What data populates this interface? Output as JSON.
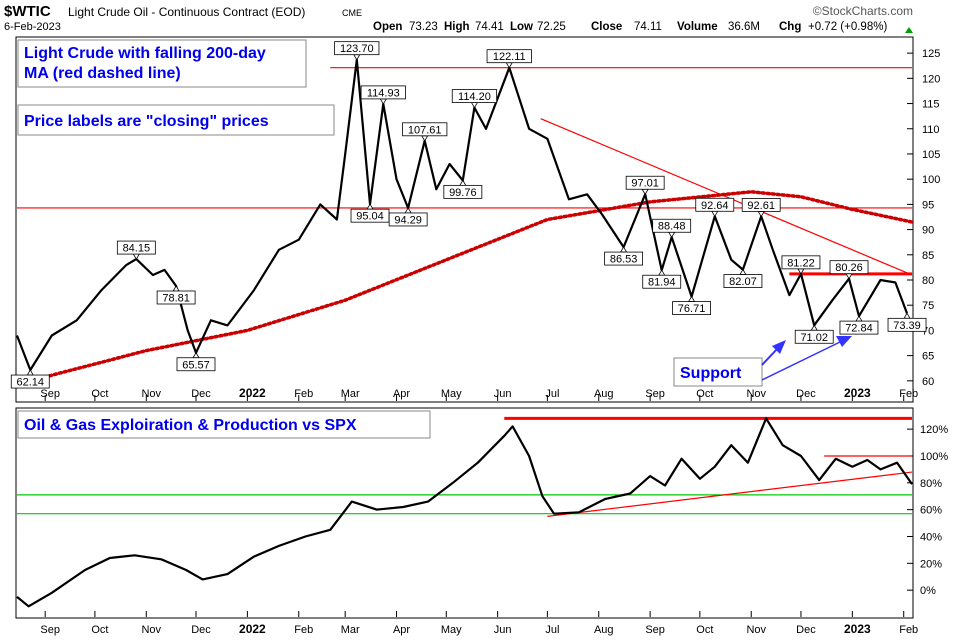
{
  "header": {
    "symbol": "$WTIC",
    "name": "Light Crude Oil - Continuous Contract (EOD)",
    "exchange": "CME",
    "date": "6-Feb-2023",
    "source": "©StockCharts.com",
    "quote_labels": {
      "open": "Open",
      "high": "High",
      "low": "Low",
      "close": "Close",
      "volume": "Volume",
      "chg": "Chg"
    },
    "quote": {
      "open": "73.23",
      "high": "74.41",
      "low": "72.25",
      "close": "74.11",
      "volume": "36.6M",
      "chg": "+0.72 (+0.98%)"
    }
  },
  "annotations": {
    "box1": [
      "Light Crude with falling 200-day",
      "MA (red dashed line)"
    ],
    "box2": "Price labels are \"closing\" prices",
    "support": "Support",
    "lower_title": "Oil & Gas Exploiration & Production vs SPX"
  },
  "x_ticks": [
    "Sep",
    "Oct",
    "Nov",
    "Dec",
    "2022",
    "Feb",
    "Mar",
    "Apr",
    "May",
    "Jun",
    "Jul",
    "Aug",
    "Sep",
    "Oct",
    "Nov",
    "Dec",
    "2023",
    "Feb"
  ],
  "x_tick_dates": [
    "2021-09-01",
    "2021-10-01",
    "2021-11-01",
    "2021-12-01",
    "2022-01-01",
    "2022-02-01",
    "2022-03-01",
    "2022-04-01",
    "2022-05-01",
    "2022-06-01",
    "2022-07-01",
    "2022-08-01",
    "2022-09-01",
    "2022-10-01",
    "2022-11-01",
    "2022-12-01",
    "2023-01-01",
    "2023-02-01"
  ],
  "colors": {
    "price": "#000000",
    "ma": "#cc0000",
    "trend": "#ff0000",
    "support_line": "#00cc00",
    "annotation_text": "#0000ee",
    "support_arrow": "#3333ff"
  },
  "chart_data": [
    {
      "type": "line",
      "title": "Light Crude Oil - Continuous Contract (EOD)",
      "ylim": [
        56,
        128
      ],
      "y_ticks": [
        60,
        65,
        70,
        75,
        80,
        85,
        90,
        95,
        100,
        105,
        110,
        115,
        120,
        125
      ],
      "grid": false,
      "series": [
        {
          "name": "$WTIC",
          "values": [
            [
              "2021-08-15",
              69
            ],
            [
              "2021-08-23",
              62.14
            ],
            [
              "2021-09-05",
              69
            ],
            [
              "2021-09-20",
              72
            ],
            [
              "2021-10-05",
              78
            ],
            [
              "2021-10-20",
              83
            ],
            [
              "2021-10-26",
              84.15
            ],
            [
              "2021-11-05",
              81
            ],
            [
              "2021-11-12",
              82
            ],
            [
              "2021-11-19",
              78.81
            ],
            [
              "2021-11-26",
              70
            ],
            [
              "2021-12-01",
              65.57
            ],
            [
              "2021-12-10",
              72
            ],
            [
              "2021-12-20",
              71
            ],
            [
              "2022-01-05",
              78
            ],
            [
              "2022-01-20",
              86
            ],
            [
              "2022-02-01",
              88
            ],
            [
              "2022-02-14",
              95
            ],
            [
              "2022-02-24",
              92
            ],
            [
              "2022-03-01",
              105
            ],
            [
              "2022-03-08",
              123.7
            ],
            [
              "2022-03-16",
              95.04
            ],
            [
              "2022-03-24",
              114.93
            ],
            [
              "2022-04-01",
              100
            ],
            [
              "2022-04-08",
              94.29
            ],
            [
              "2022-04-18",
              107.61
            ],
            [
              "2022-04-25",
              98
            ],
            [
              "2022-05-03",
              103
            ],
            [
              "2022-05-11",
              99.76
            ],
            [
              "2022-05-18",
              114.2
            ],
            [
              "2022-05-25",
              110
            ],
            [
              "2022-06-08",
              122.11
            ],
            [
              "2022-06-20",
              110
            ],
            [
              "2022-07-01",
              108
            ],
            [
              "2022-07-14",
              96
            ],
            [
              "2022-07-25",
              97
            ],
            [
              "2022-08-03",
              93
            ],
            [
              "2022-08-16",
              86.53
            ],
            [
              "2022-08-29",
              97.01
            ],
            [
              "2022-09-08",
              81.94
            ],
            [
              "2022-09-14",
              88.48
            ],
            [
              "2022-09-26",
              76.71
            ],
            [
              "2022-10-10",
              92.64
            ],
            [
              "2022-10-20",
              84
            ],
            [
              "2022-10-27",
              82.07
            ],
            [
              "2022-11-07",
              92.61
            ],
            [
              "2022-11-14",
              86
            ],
            [
              "2022-11-24",
              77
            ],
            [
              "2022-12-01",
              81.22
            ],
            [
              "2022-12-09",
              71.02
            ],
            [
              "2022-12-20",
              76
            ],
            [
              "2022-12-30",
              80.26
            ],
            [
              "2023-01-05",
              72.84
            ],
            [
              "2023-01-18",
              80
            ],
            [
              "2023-01-27",
              79.5
            ],
            [
              "2023-02-03",
              73.39
            ]
          ]
        },
        {
          "name": "200-day MA",
          "style": "dashed",
          "values": [
            [
              "2021-08-23",
              60
            ],
            [
              "2021-11-01",
              66
            ],
            [
              "2022-01-01",
              70
            ],
            [
              "2022-03-01",
              76
            ],
            [
              "2022-05-01",
              84
            ],
            [
              "2022-07-01",
              92
            ],
            [
              "2022-09-01",
              95.5
            ],
            [
              "2022-11-01",
              97.5
            ],
            [
              "2022-12-01",
              96.5
            ],
            [
              "2023-01-01",
              94
            ],
            [
              "2023-02-06",
              91.5
            ]
          ]
        }
      ],
      "labels": [
        {
          "date": "2021-08-23",
          "value": 62.14,
          "text": "62.14",
          "pos": "below"
        },
        {
          "date": "2021-10-26",
          "value": 84.15,
          "text": "84.15",
          "pos": "above"
        },
        {
          "date": "2021-11-19",
          "value": 78.81,
          "text": "78.81",
          "pos": "below"
        },
        {
          "date": "2021-12-01",
          "value": 65.57,
          "text": "65.57",
          "pos": "below"
        },
        {
          "date": "2022-03-08",
          "value": 123.7,
          "text": "123.70",
          "pos": "above"
        },
        {
          "date": "2022-03-16",
          "value": 95.04,
          "text": "95.04",
          "pos": "below"
        },
        {
          "date": "2022-03-24",
          "value": 114.93,
          "text": "114.93",
          "pos": "above"
        },
        {
          "date": "2022-04-08",
          "value": 94.29,
          "text": "94.29",
          "pos": "below"
        },
        {
          "date": "2022-04-18",
          "value": 107.61,
          "text": "107.61",
          "pos": "above"
        },
        {
          "date": "2022-05-11",
          "value": 99.76,
          "text": "99.76",
          "pos": "below"
        },
        {
          "date": "2022-05-18",
          "value": 114.2,
          "text": "114.20",
          "pos": "above"
        },
        {
          "date": "2022-06-08",
          "value": 122.11,
          "text": "122.11",
          "pos": "above"
        },
        {
          "date": "2022-08-16",
          "value": 86.53,
          "text": "86.53",
          "pos": "below"
        },
        {
          "date": "2022-08-29",
          "value": 97.01,
          "text": "97.01",
          "pos": "above"
        },
        {
          "date": "2022-09-08",
          "value": 81.94,
          "text": "81.94",
          "pos": "below"
        },
        {
          "date": "2022-09-14",
          "value": 88.48,
          "text": "88.48",
          "pos": "above"
        },
        {
          "date": "2022-09-26",
          "value": 76.71,
          "text": "76.71",
          "pos": "below"
        },
        {
          "date": "2022-10-10",
          "value": 92.64,
          "text": "92.64",
          "pos": "above"
        },
        {
          "date": "2022-10-27",
          "value": 82.07,
          "text": "82.07",
          "pos": "below"
        },
        {
          "date": "2022-11-07",
          "value": 92.61,
          "text": "92.61",
          "pos": "above"
        },
        {
          "date": "2022-12-01",
          "value": 81.22,
          "text": "81.22",
          "pos": "above"
        },
        {
          "date": "2022-12-09",
          "value": 71.02,
          "text": "71.02",
          "pos": "below"
        },
        {
          "date": "2022-12-30",
          "value": 80.26,
          "text": "80.26",
          "pos": "above"
        },
        {
          "date": "2023-01-05",
          "value": 72.84,
          "text": "72.84",
          "pos": "below"
        },
        {
          "date": "2023-02-03",
          "value": 73.39,
          "text": "73.39",
          "pos": "below"
        }
      ],
      "hlines": [
        {
          "value": 122.11,
          "from": "2022-02-20",
          "to": "2023-02-06"
        },
        {
          "value": 94.29,
          "from": "2021-08-15",
          "to": "2023-02-06"
        },
        {
          "value": 81.22,
          "from": "2022-11-24",
          "to": "2023-02-06",
          "bold": true
        }
      ],
      "trendlines": [
        {
          "from": [
            "2022-06-27",
            112
          ],
          "to": [
            "2023-02-06",
            81
          ]
        }
      ]
    },
    {
      "type": "line",
      "title": "Oil & Gas Exploiration & Production vs SPX",
      "ylim": [
        -20,
        135
      ],
      "y_ticks": [
        0,
        20,
        40,
        60,
        80,
        100,
        120
      ],
      "y_tick_suffix": "%",
      "series": [
        {
          "name": "Oil & Gas Exploiration & Production vs SPX",
          "values": [
            [
              "2021-08-15",
              -5
            ],
            [
              "2021-08-22",
              -12
            ],
            [
              "2021-09-05",
              -2
            ],
            [
              "2021-09-25",
              15
            ],
            [
              "2021-10-10",
              24
            ],
            [
              "2021-10-25",
              26
            ],
            [
              "2021-11-10",
              23
            ],
            [
              "2021-11-25",
              15
            ],
            [
              "2021-12-05",
              8
            ],
            [
              "2021-12-20",
              12
            ],
            [
              "2022-01-05",
              25
            ],
            [
              "2022-01-20",
              33
            ],
            [
              "2022-02-05",
              40
            ],
            [
              "2022-02-20",
              45
            ],
            [
              "2022-03-05",
              66
            ],
            [
              "2022-03-20",
              60
            ],
            [
              "2022-04-05",
              62
            ],
            [
              "2022-04-20",
              66
            ],
            [
              "2022-05-05",
              80
            ],
            [
              "2022-05-20",
              95
            ],
            [
              "2022-06-05",
              115
            ],
            [
              "2022-06-10",
              122
            ],
            [
              "2022-06-20",
              100
            ],
            [
              "2022-06-28",
              70
            ],
            [
              "2022-07-05",
              57
            ],
            [
              "2022-07-20",
              58
            ],
            [
              "2022-08-05",
              68
            ],
            [
              "2022-08-20",
              72
            ],
            [
              "2022-09-01",
              85
            ],
            [
              "2022-09-10",
              78
            ],
            [
              "2022-09-20",
              98
            ],
            [
              "2022-10-01",
              83
            ],
            [
              "2022-10-10",
              92
            ],
            [
              "2022-10-20",
              108
            ],
            [
              "2022-10-30",
              95
            ],
            [
              "2022-11-10",
              128
            ],
            [
              "2022-11-20",
              108
            ],
            [
              "2022-12-01",
              100
            ],
            [
              "2022-12-12",
              82
            ],
            [
              "2022-12-22",
              98
            ],
            [
              "2023-01-01",
              92
            ],
            [
              "2023-01-10",
              97
            ],
            [
              "2023-01-18",
              90
            ],
            [
              "2023-01-28",
              95
            ],
            [
              "2023-02-06",
              79
            ]
          ]
        }
      ],
      "hlines": [
        {
          "value": 128,
          "from": "2022-06-05",
          "to": "2023-02-06",
          "bold": true,
          "color": "trend"
        },
        {
          "value": 100,
          "from": "2022-12-15",
          "to": "2023-02-06",
          "color": "trend"
        },
        {
          "value": 71,
          "from": "2021-08-15",
          "to": "2023-02-06",
          "color": "support_line"
        },
        {
          "value": 57,
          "from": "2021-08-15",
          "to": "2023-02-06",
          "color": "support_line"
        }
      ],
      "trendlines": [
        {
          "from": [
            "2022-07-01",
            55
          ],
          "to": [
            "2023-02-06",
            88
          ]
        }
      ]
    }
  ]
}
